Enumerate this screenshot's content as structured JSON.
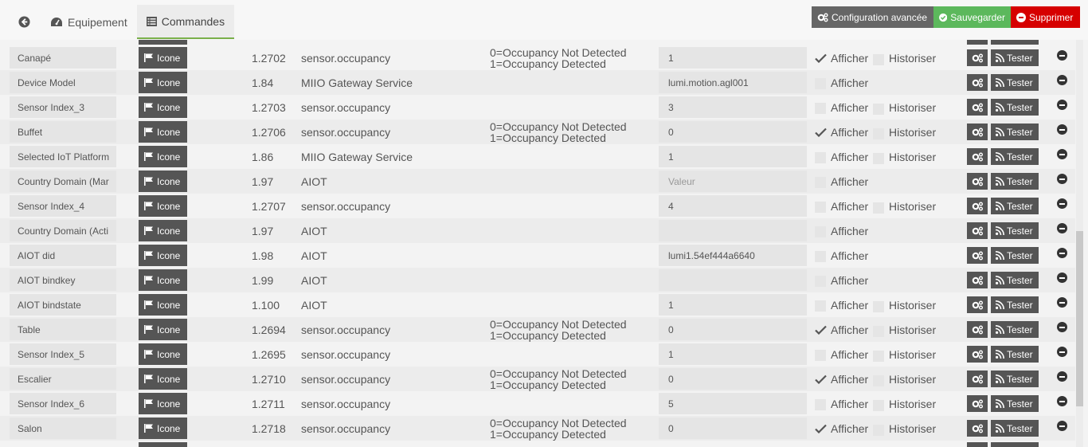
{
  "tabs": {
    "equipement": "Equipement",
    "commandes": "Commandes"
  },
  "actions": {
    "config": "Configuration avancée",
    "save": "Sauvegarder",
    "delete": "Supprimer"
  },
  "labels": {
    "icone": "Icone",
    "afficher": "Afficher",
    "historiser": "Historiser",
    "tester": "Tester"
  },
  "colors": {
    "save": "#5cb85c",
    "delete": "#d60000",
    "config": "#666666",
    "active_tab_underline": "#7ab04a"
  },
  "rows": [
    {
      "name": "Canapé",
      "id": "1.2702",
      "type": "sensor.occupancy",
      "info": [
        "0=Occupancy Not Detected",
        "1=Occupancy Detected"
      ],
      "value": "1",
      "placeholder": false,
      "afficher": true,
      "historiser": true,
      "has_hist": true
    },
    {
      "name": "Device Model",
      "id": "1.84",
      "type": "MIIO Gateway Service",
      "info": [],
      "value": "lumi.motion.agl001",
      "placeholder": false,
      "afficher": false,
      "historiser": false,
      "has_hist": false
    },
    {
      "name": "Sensor Index_3",
      "id": "1.2703",
      "type": "sensor.occupancy",
      "info": [],
      "value": "3",
      "placeholder": false,
      "afficher": false,
      "historiser": false,
      "has_hist": true
    },
    {
      "name": "Buffet",
      "id": "1.2706",
      "type": "sensor.occupancy",
      "info": [
        "0=Occupancy Not Detected",
        "1=Occupancy Detected"
      ],
      "value": "0",
      "placeholder": false,
      "afficher": true,
      "historiser": false,
      "has_hist": true
    },
    {
      "name": "Selected IoT Platform",
      "id": "1.86",
      "type": "MIIO Gateway Service",
      "info": [],
      "value": "1",
      "placeholder": false,
      "afficher": false,
      "historiser": false,
      "has_hist": true
    },
    {
      "name": "Country Domain (Mar",
      "id": "1.97",
      "type": "AIOT",
      "info": [],
      "value": "Valeur",
      "placeholder": true,
      "afficher": false,
      "historiser": false,
      "has_hist": false
    },
    {
      "name": "Sensor Index_4",
      "id": "1.2707",
      "type": "sensor.occupancy",
      "info": [],
      "value": "4",
      "placeholder": false,
      "afficher": false,
      "historiser": false,
      "has_hist": true
    },
    {
      "name": "Country Domain (Acti",
      "id": "1.97",
      "type": "AIOT",
      "info": [],
      "value": "",
      "placeholder": false,
      "afficher": false,
      "historiser": false,
      "has_hist": false
    },
    {
      "name": "AIOT did",
      "id": "1.98",
      "type": "AIOT",
      "info": [],
      "value": "lumi1.54ef444a6640",
      "placeholder": false,
      "afficher": false,
      "historiser": false,
      "has_hist": false
    },
    {
      "name": "AIOT bindkey",
      "id": "1.99",
      "type": "AIOT",
      "info": [],
      "value": "",
      "placeholder": false,
      "afficher": false,
      "historiser": false,
      "has_hist": false
    },
    {
      "name": "AIOT bindstate",
      "id": "1.100",
      "type": "AIOT",
      "info": [],
      "value": "1",
      "placeholder": false,
      "afficher": false,
      "historiser": false,
      "has_hist": true
    },
    {
      "name": "Table",
      "id": "1.2694",
      "type": "sensor.occupancy",
      "info": [
        "0=Occupancy Not Detected",
        "1=Occupancy Detected"
      ],
      "value": "0",
      "placeholder": false,
      "afficher": true,
      "historiser": false,
      "has_hist": true
    },
    {
      "name": "Sensor Index_5",
      "id": "1.2695",
      "type": "sensor.occupancy",
      "info": [],
      "value": "1",
      "placeholder": false,
      "afficher": false,
      "historiser": false,
      "has_hist": true
    },
    {
      "name": "Escalier",
      "id": "1.2710",
      "type": "sensor.occupancy",
      "info": [
        "0=Occupancy Not Detected",
        "1=Occupancy Detected"
      ],
      "value": "0",
      "placeholder": false,
      "afficher": true,
      "historiser": false,
      "has_hist": true
    },
    {
      "name": "Sensor Index_6",
      "id": "1.2711",
      "type": "sensor.occupancy",
      "info": [],
      "value": "5",
      "placeholder": false,
      "afficher": false,
      "historiser": false,
      "has_hist": true
    },
    {
      "name": "Salon",
      "id": "1.2718",
      "type": "sensor.occupancy",
      "info": [
        "0=Occupancy Not Detected",
        "1=Occupancy Detected"
      ],
      "value": "0",
      "placeholder": false,
      "afficher": true,
      "historiser": false,
      "has_hist": true
    }
  ]
}
